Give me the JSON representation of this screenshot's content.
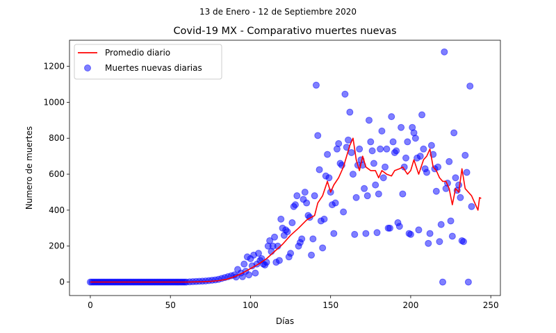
{
  "chart_data": {
    "type": "scatter",
    "suptitle": "13 de Enero - 12 de Septiembre 2020",
    "title": "Covid-19 MX - Comparativo muertes nuevas",
    "xlabel": "Días",
    "ylabel": "Numero de muertes",
    "xlim": [
      -13,
      256
    ],
    "ylim": [
      -75,
      1345
    ],
    "x_ticks": [
      0,
      50,
      100,
      150,
      200,
      250
    ],
    "y_ticks": [
      0,
      200,
      400,
      600,
      800,
      1000,
      1200
    ],
    "grid": false,
    "legend_position": "upper-left",
    "series": [
      {
        "name": "Promedio diario",
        "kind": "line",
        "color": "#ff0000",
        "points": [
          [
            0,
            0
          ],
          [
            60,
            0
          ],
          [
            65,
            1
          ],
          [
            70,
            2
          ],
          [
            75,
            4
          ],
          [
            80,
            8
          ],
          [
            85,
            15
          ],
          [
            90,
            30
          ],
          [
            95,
            50
          ],
          [
            100,
            75
          ],
          [
            105,
            100
          ],
          [
            110,
            130
          ],
          [
            115,
            170
          ],
          [
            120,
            210
          ],
          [
            125,
            260
          ],
          [
            130,
            300
          ],
          [
            135,
            345
          ],
          [
            140,
            370
          ],
          [
            142,
            440
          ],
          [
            145,
            480
          ],
          [
            148,
            560
          ],
          [
            150,
            500
          ],
          [
            152,
            540
          ],
          [
            155,
            580
          ],
          [
            158,
            640
          ],
          [
            160,
            700
          ],
          [
            162,
            760
          ],
          [
            164,
            800
          ],
          [
            166,
            680
          ],
          [
            168,
            620
          ],
          [
            170,
            700
          ],
          [
            172,
            640
          ],
          [
            175,
            620
          ],
          [
            178,
            620
          ],
          [
            180,
            580
          ],
          [
            182,
            620
          ],
          [
            185,
            600
          ],
          [
            188,
            590
          ],
          [
            190,
            620
          ],
          [
            193,
            630
          ],
          [
            195,
            640
          ],
          [
            198,
            600
          ],
          [
            200,
            620
          ],
          [
            202,
            680
          ],
          [
            205,
            600
          ],
          [
            208,
            680
          ],
          [
            210,
            700
          ],
          [
            212,
            740
          ],
          [
            214,
            640
          ],
          [
            216,
            620
          ],
          [
            218,
            580
          ],
          [
            220,
            560
          ],
          [
            222,
            560
          ],
          [
            224,
            520
          ],
          [
            226,
            430
          ],
          [
            228,
            520
          ],
          [
            230,
            500
          ],
          [
            232,
            630
          ],
          [
            234,
            520
          ],
          [
            236,
            500
          ],
          [
            238,
            480
          ],
          [
            240,
            440
          ],
          [
            242,
            400
          ],
          [
            243,
            470
          ],
          [
            244,
            465
          ]
        ]
      },
      {
        "name": "Muertes nuevas diarias",
        "kind": "scatter",
        "color": "#0000ff",
        "points": [
          [
            0,
            0
          ],
          [
            1,
            0
          ],
          [
            2,
            0
          ],
          [
            3,
            0
          ],
          [
            4,
            0
          ],
          [
            5,
            0
          ],
          [
            6,
            0
          ],
          [
            7,
            0
          ],
          [
            8,
            0
          ],
          [
            9,
            0
          ],
          [
            10,
            0
          ],
          [
            11,
            0
          ],
          [
            12,
            0
          ],
          [
            13,
            0
          ],
          [
            14,
            0
          ],
          [
            15,
            0
          ],
          [
            16,
            0
          ],
          [
            17,
            0
          ],
          [
            18,
            0
          ],
          [
            19,
            0
          ],
          [
            20,
            0
          ],
          [
            21,
            0
          ],
          [
            22,
            0
          ],
          [
            23,
            0
          ],
          [
            24,
            0
          ],
          [
            25,
            0
          ],
          [
            26,
            0
          ],
          [
            27,
            0
          ],
          [
            28,
            0
          ],
          [
            29,
            0
          ],
          [
            30,
            0
          ],
          [
            31,
            0
          ],
          [
            32,
            0
          ],
          [
            33,
            0
          ],
          [
            34,
            0
          ],
          [
            35,
            0
          ],
          [
            36,
            0
          ],
          [
            37,
            0
          ],
          [
            38,
            0
          ],
          [
            39,
            0
          ],
          [
            40,
            0
          ],
          [
            41,
            0
          ],
          [
            42,
            0
          ],
          [
            43,
            0
          ],
          [
            44,
            0
          ],
          [
            45,
            0
          ],
          [
            46,
            0
          ],
          [
            47,
            0
          ],
          [
            48,
            0
          ],
          [
            49,
            0
          ],
          [
            50,
            0
          ],
          [
            51,
            0
          ],
          [
            52,
            0
          ],
          [
            53,
            0
          ],
          [
            54,
            0
          ],
          [
            55,
            0
          ],
          [
            56,
            0
          ],
          [
            57,
            0
          ],
          [
            58,
            0
          ],
          [
            59,
            0
          ],
          [
            60,
            0
          ],
          [
            62,
            1
          ],
          [
            64,
            2
          ],
          [
            66,
            3
          ],
          [
            68,
            4
          ],
          [
            70,
            5
          ],
          [
            72,
            6
          ],
          [
            74,
            8
          ],
          [
            76,
            10
          ],
          [
            78,
            12
          ],
          [
            80,
            15
          ],
          [
            82,
            20
          ],
          [
            84,
            25
          ],
          [
            86,
            30
          ],
          [
            88,
            35
          ],
          [
            90,
            40
          ],
          [
            91,
            28
          ],
          [
            92,
            70
          ],
          [
            94,
            50
          ],
          [
            95,
            30
          ],
          [
            96,
            100
          ],
          [
            97,
            60
          ],
          [
            98,
            140
          ],
          [
            99,
            40
          ],
          [
            100,
            130
          ],
          [
            101,
            90
          ],
          [
            102,
            150
          ],
          [
            103,
            50
          ],
          [
            104,
            100
          ],
          [
            105,
            160
          ],
          [
            106,
            120
          ],
          [
            107,
            130
          ],
          [
            108,
            100
          ],
          [
            109,
            95
          ],
          [
            110,
            110
          ],
          [
            111,
            200
          ],
          [
            112,
            230
          ],
          [
            113,
            170
          ],
          [
            114,
            200
          ],
          [
            115,
            250
          ],
          [
            116,
            110
          ],
          [
            117,
            200
          ],
          [
            118,
            120
          ],
          [
            119,
            350
          ],
          [
            120,
            300
          ],
          [
            121,
            260
          ],
          [
            122,
            290
          ],
          [
            123,
            280
          ],
          [
            124,
            140
          ],
          [
            125,
            160
          ],
          [
            126,
            330
          ],
          [
            127,
            420
          ],
          [
            128,
            430
          ],
          [
            129,
            480
          ],
          [
            130,
            200
          ],
          [
            131,
            220
          ],
          [
            132,
            240
          ],
          [
            133,
            460
          ],
          [
            134,
            500
          ],
          [
            135,
            440
          ],
          [
            136,
            370
          ],
          [
            137,
            360
          ],
          [
            138,
            150
          ],
          [
            139,
            240
          ],
          [
            140,
            480
          ],
          [
            141,
            1095
          ],
          [
            142,
            815
          ],
          [
            143,
            625
          ],
          [
            144,
            340
          ],
          [
            145,
            190
          ],
          [
            146,
            350
          ],
          [
            147,
            590
          ],
          [
            148,
            710
          ],
          [
            149,
            580
          ],
          [
            150,
            500
          ],
          [
            151,
            430
          ],
          [
            152,
            270
          ],
          [
            153,
            440
          ],
          [
            154,
            740
          ],
          [
            155,
            770
          ],
          [
            156,
            660
          ],
          [
            157,
            650
          ],
          [
            158,
            390
          ],
          [
            159,
            1045
          ],
          [
            160,
            750
          ],
          [
            161,
            790
          ],
          [
            162,
            945
          ],
          [
            163,
            720
          ],
          [
            164,
            600
          ],
          [
            165,
            265
          ],
          [
            166,
            470
          ],
          [
            167,
            650
          ],
          [
            168,
            740
          ],
          [
            169,
            680
          ],
          [
            170,
            650
          ],
          [
            171,
            520
          ],
          [
            172,
            270
          ],
          [
            173,
            480
          ],
          [
            174,
            900
          ],
          [
            175,
            780
          ],
          [
            176,
            730
          ],
          [
            177,
            660
          ],
          [
            178,
            540
          ],
          [
            179,
            275
          ],
          [
            180,
            490
          ],
          [
            181,
            740
          ],
          [
            182,
            840
          ],
          [
            183,
            580
          ],
          [
            184,
            640
          ],
          [
            185,
            740
          ],
          [
            186,
            300
          ],
          [
            187,
            300
          ],
          [
            188,
            920
          ],
          [
            189,
            780
          ],
          [
            190,
            720
          ],
          [
            191,
            730
          ],
          [
            192,
            330
          ],
          [
            193,
            310
          ],
          [
            194,
            860
          ],
          [
            195,
            490
          ],
          [
            196,
            640
          ],
          [
            197,
            690
          ],
          [
            198,
            780
          ],
          [
            199,
            270
          ],
          [
            200,
            265
          ],
          [
            201,
            860
          ],
          [
            202,
            830
          ],
          [
            203,
            800
          ],
          [
            204,
            690
          ],
          [
            205,
            290
          ],
          [
            206,
            700
          ],
          [
            207,
            930
          ],
          [
            208,
            740
          ],
          [
            209,
            630
          ],
          [
            210,
            610
          ],
          [
            211,
            215
          ],
          [
            212,
            270
          ],
          [
            213,
            760
          ],
          [
            214,
            710
          ],
          [
            215,
            630
          ],
          [
            216,
            505
          ],
          [
            217,
            640
          ],
          [
            218,
            225
          ],
          [
            219,
            320
          ],
          [
            220,
            0
          ],
          [
            221,
            1280
          ],
          [
            222,
            520
          ],
          [
            223,
            550
          ],
          [
            224,
            670
          ],
          [
            225,
            340
          ],
          [
            226,
            255
          ],
          [
            227,
            830
          ],
          [
            228,
            580
          ],
          [
            229,
            510
          ],
          [
            230,
            540
          ],
          [
            231,
            470
          ],
          [
            232,
            230
          ],
          [
            233,
            225
          ],
          [
            234,
            705
          ],
          [
            235,
            610
          ],
          [
            236,
            0
          ],
          [
            237,
            1090
          ],
          [
            238,
            420
          ]
        ]
      }
    ]
  }
}
